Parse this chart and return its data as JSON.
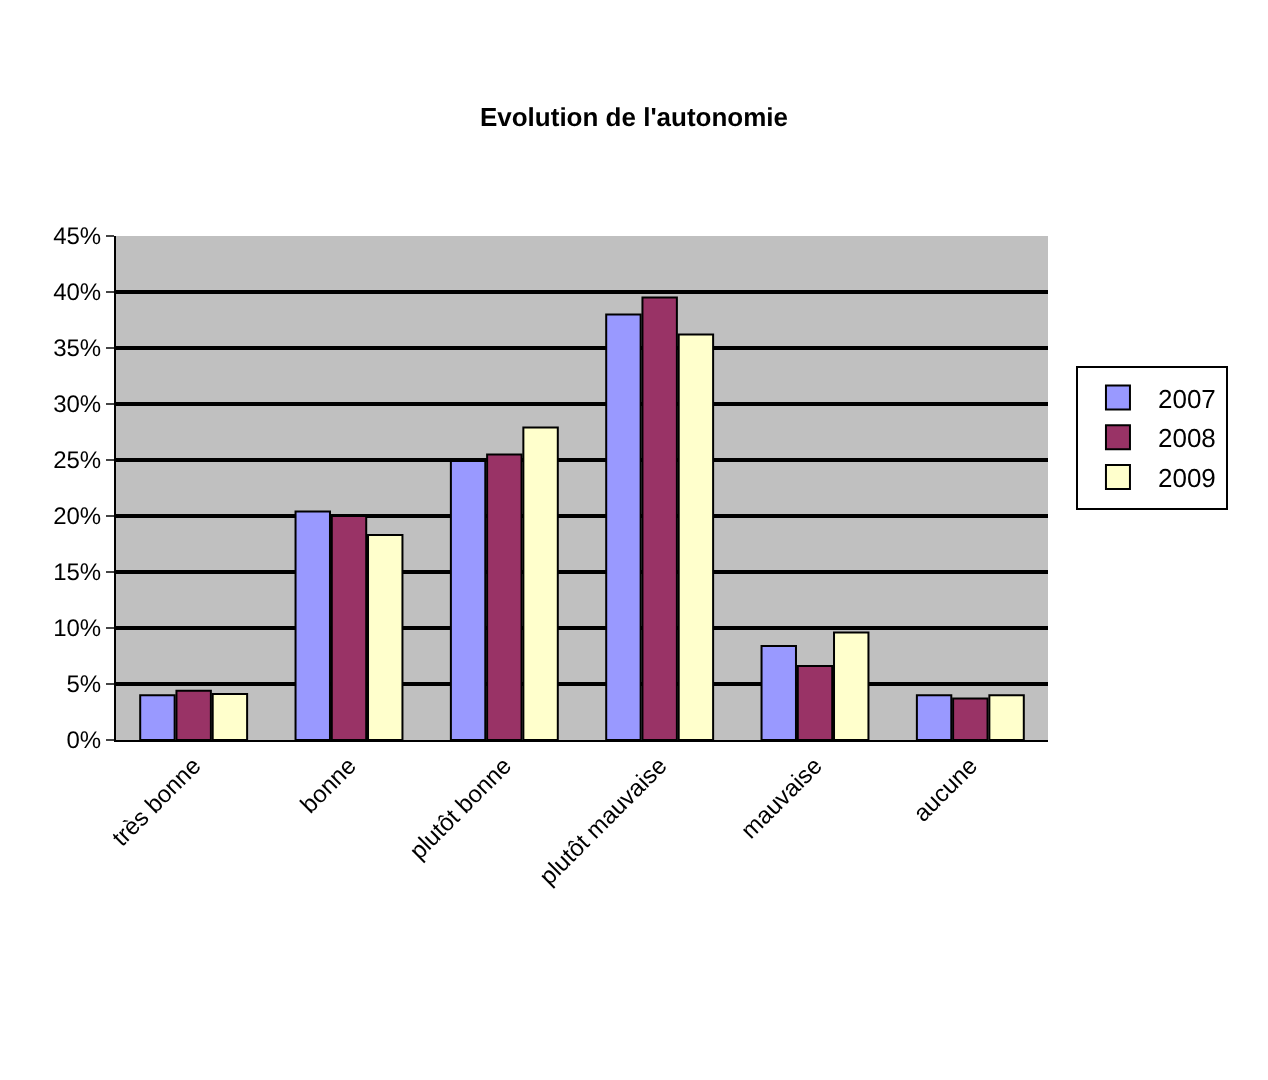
{
  "chart_data": {
    "type": "bar",
    "title": "Evolution de l'autonomie",
    "categories": [
      "très bonne",
      "bonne",
      "plutôt bonne",
      "plutôt mauvaise",
      "mauvaise",
      "aucune"
    ],
    "series": [
      {
        "name": "2007",
        "color": "#9999ff",
        "values": [
          4.0,
          20.4,
          24.9,
          38.0,
          8.4,
          4.0
        ]
      },
      {
        "name": "2008",
        "color": "#993366",
        "values": [
          4.4,
          20.0,
          25.5,
          39.5,
          6.6,
          3.7
        ]
      },
      {
        "name": "2009",
        "color": "#ffffcc",
        "values": [
          4.1,
          18.3,
          27.9,
          36.2,
          9.6,
          4.0
        ]
      }
    ],
    "ylim": [
      0,
      45
    ],
    "yticks": [
      {
        "value": 0,
        "label": "0%"
      },
      {
        "value": 5,
        "label": "5%"
      },
      {
        "value": 10,
        "label": "10%"
      },
      {
        "value": 15,
        "label": "15%"
      },
      {
        "value": 20,
        "label": "20%"
      },
      {
        "value": 25,
        "label": "25%"
      },
      {
        "value": 30,
        "label": "30%"
      },
      {
        "value": 35,
        "label": "35%"
      },
      {
        "value": 40,
        "label": "40%"
      },
      {
        "value": 45,
        "label": "45%"
      }
    ],
    "grid": "y",
    "legend": "right"
  }
}
